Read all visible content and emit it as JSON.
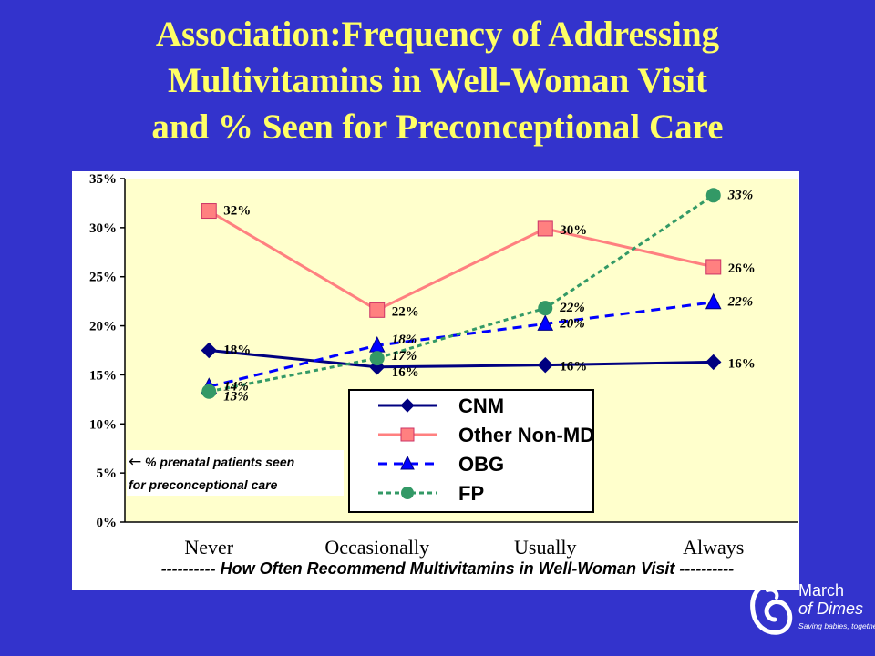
{
  "title_lines": [
    "Association:Frequency of Addressing",
    "Multivitamins in Well-Woman Visit",
    "and % Seen for Preconceptional Care"
  ],
  "colors": {
    "background": "#3333cc",
    "title": "#ffff66",
    "plot_area": "#ffffcc"
  },
  "logo": {
    "line1": "March",
    "line2": "of Dimes",
    "tagline": "Saving babies, together",
    "icon": "march-of-dimes-mother-baby-icon"
  },
  "chart_data": {
    "type": "line",
    "categories": [
      "Never",
      "Occasionally",
      "Usually",
      "Always"
    ],
    "xlabel": "---------- How Often Recommend Multivitamins in Well-Woman Visit ----------",
    "ylabel": "",
    "ylim": [
      0,
      35
    ],
    "yticks": [
      "0%",
      "5%",
      "10%",
      "15%",
      "20%",
      "25%",
      "30%",
      "35%"
    ],
    "grid": false,
    "legend_position": "bottom-center",
    "annotation": {
      "arrow": "←",
      "lines": [
        "% prenatal patients seen",
        "for preconceptional care"
      ]
    },
    "series": [
      {
        "name": "CNM",
        "values": [
          17.5,
          15.8,
          16.0,
          16.3
        ],
        "labels": [
          "18%",
          "16%",
          "16%",
          "16%"
        ],
        "color": "#000080",
        "marker": "diamond",
        "dash": "solid"
      },
      {
        "name": "Other Non-MD",
        "values": [
          31.7,
          21.6,
          29.9,
          26.0
        ],
        "labels": [
          "32%",
          "22%",
          "30%",
          "26%"
        ],
        "color": "#ff8080",
        "marker": "square",
        "dash": "solid"
      },
      {
        "name": "OBG",
        "values": [
          13.8,
          18.0,
          20.2,
          22.4
        ],
        "labels": [
          "14%",
          "18%",
          "20%",
          "22%"
        ],
        "color": "#0000ff",
        "marker": "triangle",
        "dash": "dash"
      },
      {
        "name": "FP",
        "values": [
          13.3,
          16.7,
          21.8,
          33.3
        ],
        "labels": [
          "13%",
          "17%",
          "22%",
          "33%"
        ],
        "color": "#339966",
        "marker": "circle",
        "dash": "dot"
      }
    ]
  }
}
